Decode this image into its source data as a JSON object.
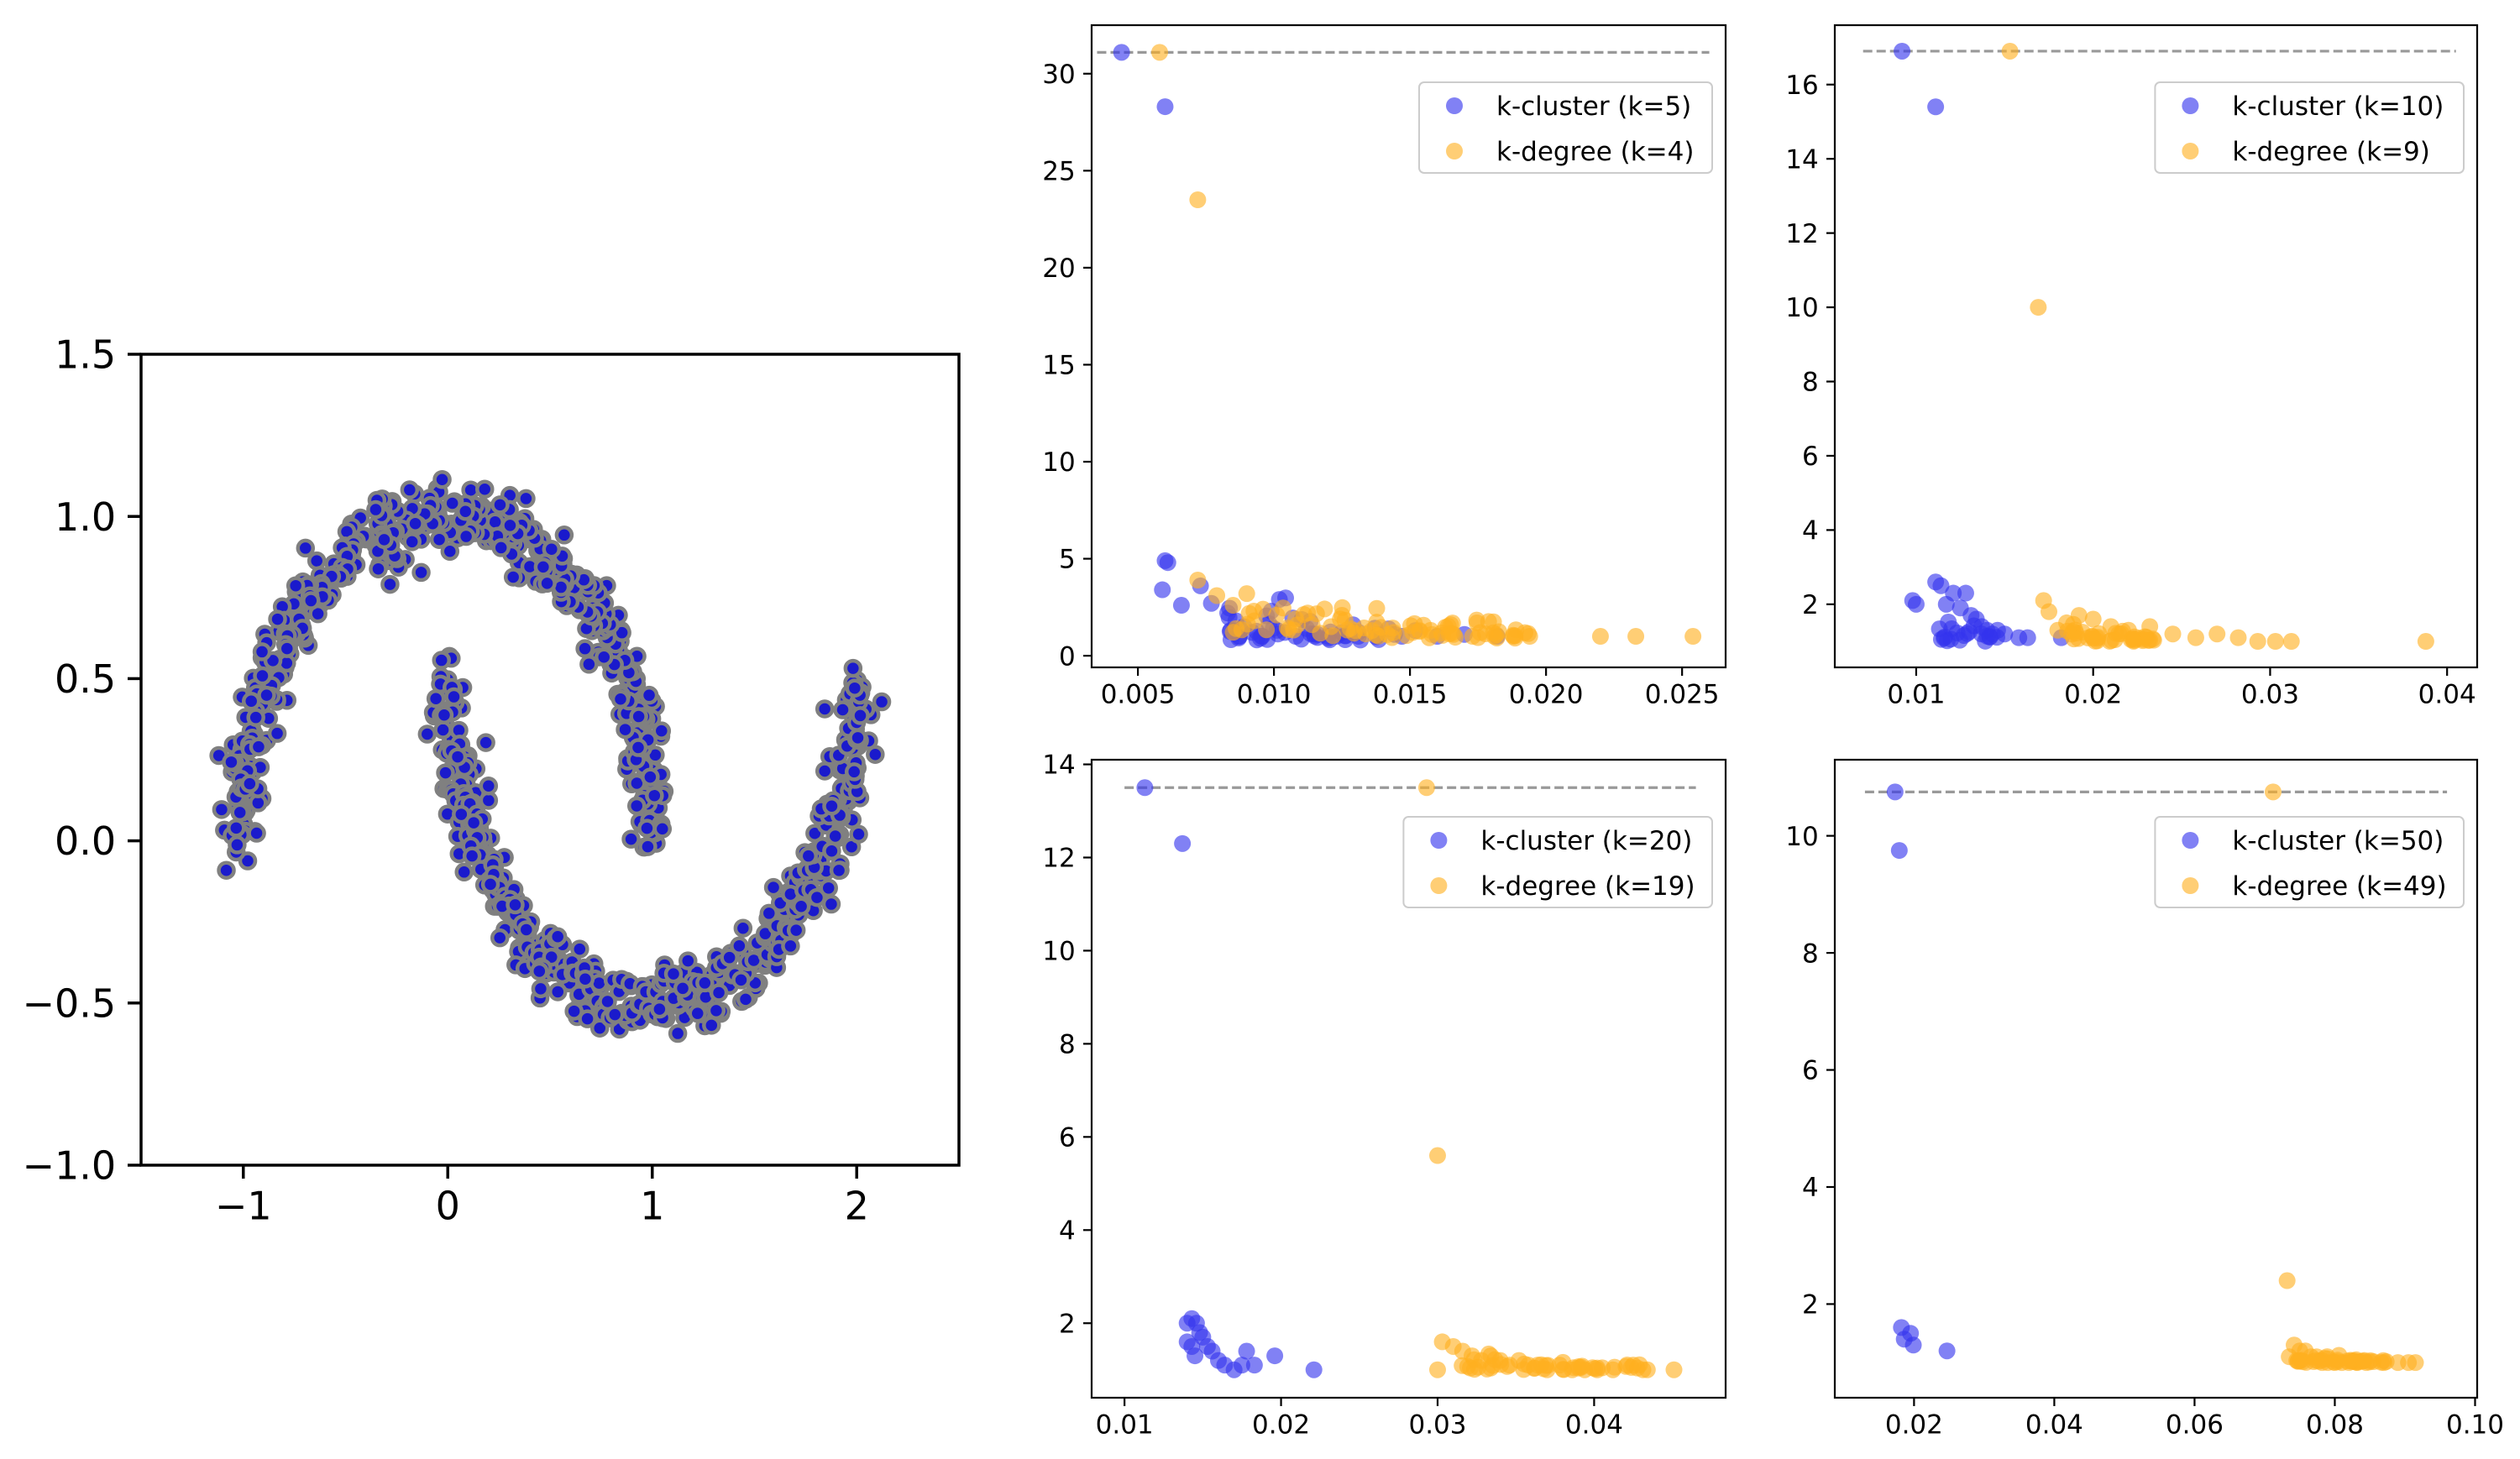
{
  "figure": {
    "title": "",
    "colors": {
      "cluster": "#3333ee",
      "degree": "#ffb020",
      "moons_fill": "#1a1acc",
      "moons_edge": "#808080",
      "reference_line": "#999999"
    }
  },
  "chart_data": [
    {
      "id": "moons",
      "type": "scatter",
      "title": "",
      "xlabel": "",
      "ylabel": "",
      "xlim": [
        -1.5,
        2.5
      ],
      "ylim": [
        -1.0,
        1.5
      ],
      "x_ticks": [
        -1,
        0,
        1,
        2
      ],
      "x_tick_labels": [
        "−1",
        "0",
        "1",
        "2"
      ],
      "y_ticks": [
        -1.0,
        -0.5,
        0.0,
        0.5,
        1.0,
        1.5
      ],
      "y_tick_labels": [
        "−1.0",
        "−0.5",
        "0.0",
        "0.5",
        "1.0",
        "1.5"
      ],
      "grid": false,
      "generator": {
        "description": "two interleaving half circles (noisy moons)",
        "n_samples": 1000,
        "noise": 0.05,
        "upper_moon": {
          "center": [
            0,
            0
          ],
          "radius": 1,
          "theta_range": [
            0,
            3.14159
          ]
        },
        "lower_moon": {
          "center": [
            1,
            0.5
          ],
          "radius": 1,
          "theta_range": [
            3.14159,
            6.28318
          ]
        }
      }
    },
    {
      "id": "panel-k5",
      "type": "scatter",
      "xlim": [
        0.0033,
        0.0266
      ],
      "ylim": [
        -0.6,
        32.5
      ],
      "x_ticks": [
        0.005,
        0.01,
        0.015,
        0.02,
        0.025
      ],
      "x_tick_labels": [
        "0.005",
        "0.010",
        "0.015",
        "0.020",
        "0.025"
      ],
      "y_ticks": [
        0,
        5,
        10,
        15,
        20,
        25,
        30
      ],
      "y_tick_labels": [
        "0",
        "5",
        "10",
        "15",
        "20",
        "25",
        "30"
      ],
      "reference_y": 31.1,
      "reference_x_range": [
        0.0035,
        0.026
      ],
      "legend_position": "upper-right",
      "series": [
        {
          "name": "k-cluster (k=5)",
          "color_key": "cluster",
          "points": [
            [
              0.0044,
              31.1
            ],
            [
              0.006,
              28.3
            ],
            [
              0.006,
              4.9
            ],
            [
              0.0061,
              4.8
            ],
            [
              0.0059,
              3.4
            ],
            [
              0.0066,
              2.6
            ],
            [
              0.0073,
              3.6
            ],
            [
              0.0077,
              2.7
            ],
            [
              0.0083,
              2.2
            ],
            [
              0.0086,
              1.8
            ],
            [
              0.0089,
              1.5
            ],
            [
              0.0092,
              1.2
            ],
            [
              0.0095,
              0.9
            ],
            [
              0.0099,
              2.3
            ],
            [
              0.0102,
              2.9
            ],
            [
              0.0104,
              1.2
            ],
            [
              0.0108,
              1.0
            ],
            [
              0.0112,
              1.4
            ],
            [
              0.0116,
              1.1
            ],
            [
              0.012,
              1.0
            ],
            [
              0.0125,
              1.2
            ],
            [
              0.0131,
              1.0
            ],
            [
              0.0138,
              1.1
            ],
            [
              0.0147,
              1.0
            ],
            [
              0.0152,
              1.3
            ],
            [
              0.016,
              1.0
            ],
            [
              0.017,
              1.1
            ],
            [
              0.0182,
              1.0
            ]
          ],
          "cloud": {
            "n": 45,
            "x_range": [
              0.0082,
              0.015
            ],
            "y_min": 0.8,
            "y_decay": 2.0
          }
        },
        {
          "name": "k-degree (k=4)",
          "color_key": "degree",
          "points": [
            [
              0.0058,
              31.1
            ],
            [
              0.0072,
              23.5
            ],
            [
              0.0072,
              3.9
            ],
            [
              0.0079,
              3.1
            ],
            [
              0.0085,
              2.6
            ],
            [
              0.009,
              3.2
            ],
            [
              0.0096,
              2.4
            ],
            [
              0.0101,
              2.1
            ],
            [
              0.0108,
              1.9
            ],
            [
              0.0114,
              1.6
            ],
            [
              0.0121,
              1.5
            ],
            [
              0.0128,
              1.4
            ],
            [
              0.0136,
              1.3
            ],
            [
              0.0144,
              1.2
            ],
            [
              0.0151,
              1.2
            ],
            [
              0.0158,
              1.1
            ],
            [
              0.0166,
              1.1
            ],
            [
              0.0173,
              1.0
            ],
            [
              0.0181,
              1.0
            ],
            [
              0.0188,
              1.0
            ],
            [
              0.0194,
              1.0
            ],
            [
              0.022,
              1.0
            ],
            [
              0.0233,
              1.0
            ],
            [
              0.0254,
              1.0
            ]
          ],
          "cloud": {
            "n": 70,
            "x_range": [
              0.0083,
              0.0195
            ],
            "y_min": 0.9,
            "y_decay": 2.4
          }
        }
      ]
    },
    {
      "id": "panel-k10",
      "type": "scatter",
      "xlim": [
        0.0054,
        0.0417
      ],
      "ylim": [
        0.3,
        17.6
      ],
      "x_ticks": [
        0.01,
        0.02,
        0.03,
        0.04
      ],
      "x_tick_labels": [
        "0.01",
        "0.02",
        "0.03",
        "0.04"
      ],
      "y_ticks": [
        2,
        4,
        6,
        8,
        10,
        12,
        14,
        16
      ],
      "y_tick_labels": [
        "2",
        "4",
        "6",
        "8",
        "10",
        "12",
        "14",
        "16"
      ],
      "reference_y": 16.9,
      "reference_x_range": [
        0.007,
        0.0405
      ],
      "legend_position": "upper-right",
      "series": [
        {
          "name": "k-cluster (k=10)",
          "color_key": "cluster",
          "points": [
            [
              0.0092,
              16.9
            ],
            [
              0.0111,
              15.4
            ],
            [
              0.0098,
              2.1
            ],
            [
              0.01,
              2.0
            ],
            [
              0.0111,
              2.6
            ],
            [
              0.0114,
              2.5
            ],
            [
              0.0117,
              2.0
            ],
            [
              0.0121,
              2.3
            ],
            [
              0.0125,
              1.9
            ],
            [
              0.0128,
              2.3
            ],
            [
              0.0131,
              1.7
            ],
            [
              0.0134,
              1.6
            ],
            [
              0.0137,
              1.4
            ],
            [
              0.014,
              1.3
            ],
            [
              0.0143,
              1.2
            ],
            [
              0.0146,
              1.3
            ],
            [
              0.015,
              1.2
            ],
            [
              0.0158,
              1.1
            ],
            [
              0.0163,
              1.1
            ],
            [
              0.0182,
              1.1
            ]
          ],
          "cloud": {
            "n": 20,
            "x_range": [
              0.0113,
              0.0148
            ],
            "y_min": 1.0,
            "y_decay": 0.7
          }
        },
        {
          "name": "k-degree (k=9)",
          "color_key": "degree",
          "points": [
            [
              0.0153,
              16.9
            ],
            [
              0.0169,
              10.0
            ],
            [
              0.0172,
              2.1
            ],
            [
              0.0175,
              1.8
            ],
            [
              0.018,
              1.3
            ],
            [
              0.0185,
              1.5
            ],
            [
              0.0192,
              1.7
            ],
            [
              0.02,
              1.6
            ],
            [
              0.021,
              1.4
            ],
            [
              0.022,
              1.3
            ],
            [
              0.0232,
              1.4
            ],
            [
              0.0245,
              1.2
            ],
            [
              0.0258,
              1.1
            ],
            [
              0.027,
              1.2
            ],
            [
              0.0282,
              1.1
            ],
            [
              0.0293,
              1.0
            ],
            [
              0.0303,
              1.0
            ],
            [
              0.0312,
              1.0
            ],
            [
              0.0388,
              1.0
            ]
          ],
          "cloud": {
            "n": 40,
            "x_range": [
              0.0185,
              0.0235
            ],
            "y_min": 1.0,
            "y_decay": 0.5
          }
        }
      ]
    },
    {
      "id": "panel-k20",
      "type": "scatter",
      "xlim": [
        0.0079,
        0.0484
      ],
      "ylim": [
        0.4,
        14.1
      ],
      "x_ticks": [
        0.01,
        0.02,
        0.03,
        0.04
      ],
      "x_tick_labels": [
        "0.01",
        "0.02",
        "0.03",
        "0.04"
      ],
      "y_ticks": [
        2,
        4,
        6,
        8,
        10,
        12,
        14
      ],
      "y_tick_labels": [
        "2",
        "4",
        "6",
        "8",
        "10",
        "12",
        "14"
      ],
      "reference_y": 13.5,
      "reference_x_range": [
        0.01,
        0.0465
      ],
      "legend_position": "upper-right",
      "series": [
        {
          "name": "k-cluster (k=20)",
          "color_key": "cluster",
          "points": [
            [
              0.0113,
              13.5
            ],
            [
              0.0137,
              12.3
            ],
            [
              0.014,
              2.0
            ],
            [
              0.0143,
              2.1
            ],
            [
              0.0146,
              2.0
            ],
            [
              0.0148,
              1.8
            ],
            [
              0.014,
              1.6
            ],
            [
              0.0143,
              1.5
            ],
            [
              0.0145,
              1.3
            ],
            [
              0.015,
              1.7
            ],
            [
              0.0153,
              1.5
            ],
            [
              0.0156,
              1.4
            ],
            [
              0.016,
              1.2
            ],
            [
              0.0164,
              1.1
            ],
            [
              0.017,
              1.0
            ],
            [
              0.0175,
              1.1
            ],
            [
              0.0178,
              1.4
            ],
            [
              0.0183,
              1.1
            ],
            [
              0.0196,
              1.3
            ],
            [
              0.0221,
              1.0
            ]
          ],
          "cloud": {
            "n": 0,
            "x_range": [
              0.014,
              0.016
            ],
            "y_min": 1.0,
            "y_decay": 0.5
          }
        },
        {
          "name": "k-degree (k=19)",
          "color_key": "degree",
          "points": [
            [
              0.0293,
              13.5
            ],
            [
              0.03,
              5.6
            ],
            [
              0.03,
              1.0
            ],
            [
              0.0303,
              1.6
            ],
            [
              0.031,
              1.5
            ],
            [
              0.0316,
              1.4
            ],
            [
              0.0322,
              1.3
            ],
            [
              0.0328,
              1.2
            ],
            [
              0.0334,
              1.3
            ],
            [
              0.034,
              1.2
            ],
            [
              0.0346,
              1.1
            ],
            [
              0.0352,
              1.2
            ],
            [
              0.0358,
              1.1
            ],
            [
              0.0364,
              1.1
            ],
            [
              0.037,
              1.0
            ],
            [
              0.0378,
              1.1
            ],
            [
              0.0386,
              1.0
            ],
            [
              0.0394,
              1.0
            ],
            [
              0.0402,
              1.0
            ],
            [
              0.0412,
              1.0
            ],
            [
              0.0425,
              1.1
            ],
            [
              0.0434,
              1.0
            ],
            [
              0.0451,
              1.0
            ]
          ],
          "cloud": {
            "n": 40,
            "x_range": [
              0.0315,
              0.044
            ],
            "y_min": 1.0,
            "y_decay": 0.35
          }
        }
      ]
    },
    {
      "id": "panel-k50",
      "type": "scatter",
      "xlim": [
        0.0087,
        0.1003
      ],
      "ylim": [
        0.4,
        11.3
      ],
      "x_ticks": [
        0.02,
        0.04,
        0.06,
        0.08,
        0.1
      ],
      "x_tick_labels": [
        "0.02",
        "0.04",
        "0.06",
        "0.08",
        "0.10"
      ],
      "y_ticks": [
        2,
        4,
        6,
        8,
        10
      ],
      "y_tick_labels": [
        "2",
        "4",
        "6",
        "8",
        "10"
      ],
      "reference_y": 10.75,
      "reference_x_range": [
        0.013,
        0.096
      ],
      "legend_position": "upper-right",
      "series": [
        {
          "name": "k-cluster (k=50)",
          "color_key": "cluster",
          "points": [
            [
              0.0173,
              10.75
            ],
            [
              0.0179,
              9.75
            ],
            [
              0.0182,
              1.6
            ],
            [
              0.0186,
              1.4
            ],
            [
              0.0195,
              1.5
            ],
            [
              0.0199,
              1.3
            ],
            [
              0.0247,
              1.2
            ]
          ],
          "cloud": {
            "n": 0,
            "x_range": [
              0.018,
              0.02
            ],
            "y_min": 1.0,
            "y_decay": 0.3
          }
        },
        {
          "name": "k-degree (k=49)",
          "color_key": "degree",
          "points": [
            [
              0.0712,
              10.75
            ],
            [
              0.0732,
              2.4
            ],
            [
              0.0735,
              1.1
            ],
            [
              0.0742,
              1.3
            ],
            [
              0.075,
              1.2
            ],
            [
              0.0758,
              1.2
            ],
            [
              0.0766,
              1.1
            ],
            [
              0.0774,
              1.1
            ],
            [
              0.0782,
              1.0
            ],
            [
              0.079,
              1.0
            ],
            [
              0.08,
              1.0
            ],
            [
              0.081,
              1.0
            ],
            [
              0.082,
              1.0
            ],
            [
              0.0832,
              1.0
            ],
            [
              0.0845,
              1.0
            ],
            [
              0.087,
              1.0
            ],
            [
              0.089,
              1.0
            ],
            [
              0.0905,
              1.0
            ],
            [
              0.0915,
              1.0
            ]
          ],
          "cloud": {
            "n": 35,
            "x_range": [
              0.074,
              0.088
            ],
            "y_min": 1.0,
            "y_decay": 0.15
          }
        }
      ]
    }
  ]
}
